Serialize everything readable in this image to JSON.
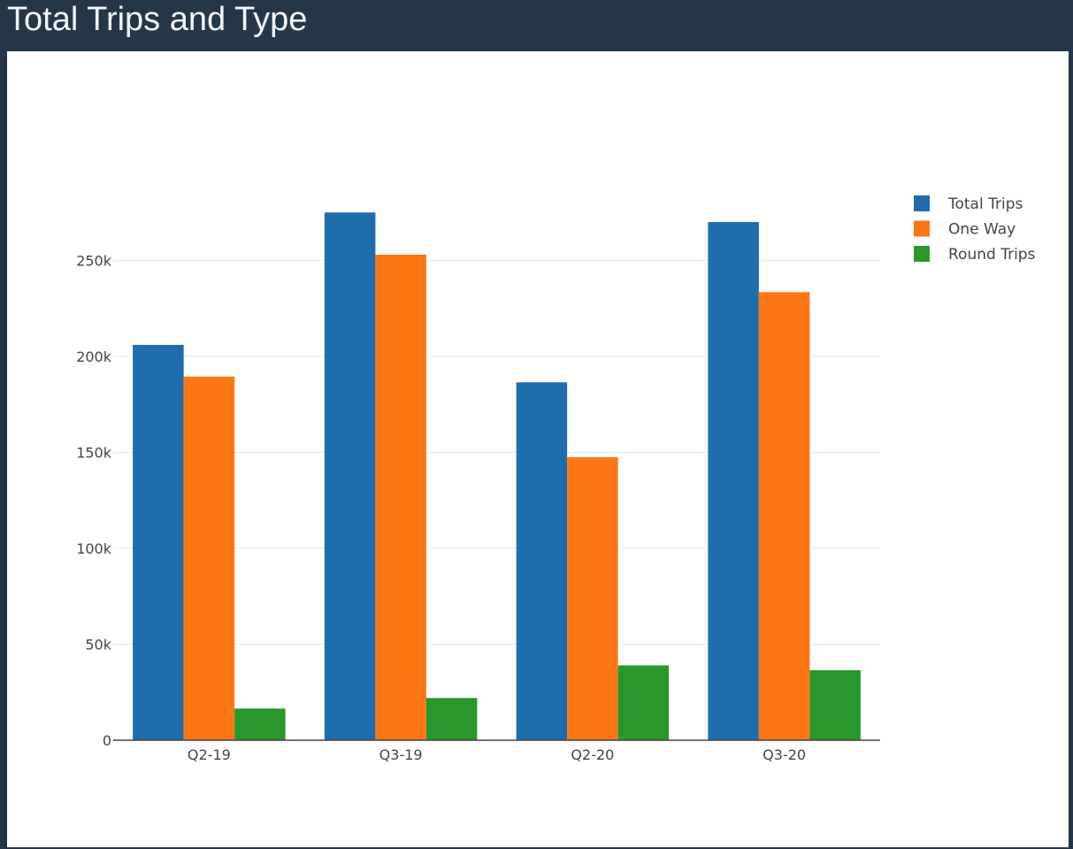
{
  "header": {
    "title": "Total Trips and Type"
  },
  "chart_data": {
    "type": "bar",
    "categories": [
      "Q2-19",
      "Q3-19",
      "Q2-20",
      "Q3-20"
    ],
    "series": [
      {
        "name": "Total Trips",
        "color": "#1f6dad",
        "values": [
          206000,
          275000,
          186500,
          270000
        ]
      },
      {
        "name": "One Way",
        "color": "#ff7615",
        "values": [
          189500,
          253000,
          147500,
          233500
        ]
      },
      {
        "name": "Round Trips",
        "color": "#2a972a",
        "values": [
          16500,
          22000,
          39000,
          36500
        ]
      }
    ],
    "yticks": [
      0,
      50000,
      100000,
      150000,
      200000,
      250000
    ],
    "ytick_labels": [
      "0",
      "50k",
      "100k",
      "150k",
      "200k",
      "250k"
    ],
    "ylim": [
      0,
      300000
    ],
    "grid": true,
    "legend_position": "top-right"
  }
}
